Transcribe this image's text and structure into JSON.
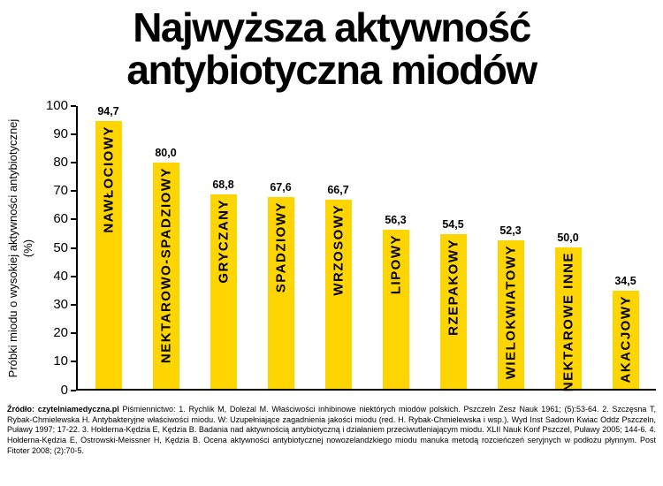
{
  "title": {
    "line1": "Najwyższa aktywność",
    "line2": "antybiotyczna miodów"
  },
  "chart_data": {
    "type": "bar",
    "title": "Najwyższa aktywność antybiotyczna miodów",
    "categories": [
      "NAWŁOCIOWY",
      "NEKTAROWO-SPADZIOWY",
      "GRYCZANY",
      "SPADZIOWY",
      "WRZOSOWY",
      "LIPOWY",
      "RZEPAKOWY",
      "WIELOKWIATOWY",
      "NEKTAROWE INNE",
      "AKACJOWY"
    ],
    "values": [
      94.7,
      80.0,
      68.8,
      67.6,
      66.7,
      56.3,
      54.5,
      52.3,
      50.0,
      34.5
    ],
    "value_labels": [
      "94,7",
      "80,0",
      "68,8",
      "67,6",
      "66,7",
      "56,3",
      "54,5",
      "52,3",
      "50,0",
      "34,5"
    ],
    "ylabel": "Próbki miodu o wysokiej aktywności antybiotycznej (%)",
    "xlabel": "",
    "ylim": [
      0,
      100
    ],
    "yticks": [
      0,
      10,
      20,
      30,
      40,
      50,
      60,
      70,
      80,
      90,
      100
    ],
    "grid": false,
    "legend": "none",
    "bar_color": "#FFD500"
  },
  "footer": {
    "source": "Źródło: czytelniamedyczna.pl",
    "references": "Piśmiennictwo: 1. Rychlik M, Doleżal M. Właściwości inhibinowe niektórych miodów polskich. Pszczeln Zesz Nauk 1961; (5):53-64. 2. Szczęsna T, Rybak-Chmielewska H. Antybakteryjne właściwości miodu. W: Uzupełniające zagadnienia jakości miodu (red. H. Rybak-Chmielewska i wsp.). Wyd Inst Sadown Kwiac Oddz Pszczeln, Puławy 1997; 17-22. 3. Hołderna-Kędzia E, Kędzia B. Badania nad aktywnością antybiotyczną i działaniem przeciwutleniającym miodu. XLII Nauk Konf Pszczel, Puławy 2005; 144-6. 4. Hołderna-Kędzia E, Ostrowski-Meissner H, Kędzia B. Ocena aktywności antybiotycznej nowozelandzkiego miodu manuka metodą rozcieńczeń seryjnych w podłożu płynnym. Post Fitoter 2008; (2):70-5."
  }
}
